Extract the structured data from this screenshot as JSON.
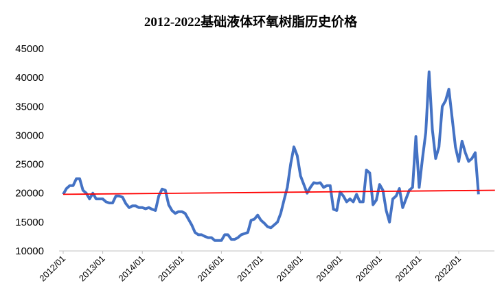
{
  "chart_data": {
    "type": "line",
    "title": "2012-2022基础液体环氧树脂历史价格",
    "x": [
      "2012/01",
      "2012/02",
      "2012/03",
      "2012/04",
      "2012/05",
      "2012/06",
      "2012/07",
      "2012/08",
      "2012/09",
      "2012/10",
      "2012/11",
      "2012/12",
      "2013/01",
      "2013/02",
      "2013/03",
      "2013/04",
      "2013/05",
      "2013/06",
      "2013/07",
      "2013/08",
      "2013/09",
      "2013/10",
      "2013/11",
      "2013/12",
      "2014/01",
      "2014/02",
      "2014/03",
      "2014/04",
      "2014/05",
      "2014/06",
      "2014/07",
      "2014/08",
      "2014/09",
      "2014/10",
      "2014/11",
      "2014/12",
      "2015/01",
      "2015/02",
      "2015/03",
      "2015/04",
      "2015/05",
      "2015/06",
      "2015/07",
      "2015/08",
      "2015/09",
      "2015/10",
      "2015/11",
      "2015/12",
      "2016/01",
      "2016/02",
      "2016/03",
      "2016/04",
      "2016/05",
      "2016/06",
      "2016/07",
      "2016/08",
      "2016/09",
      "2016/10",
      "2016/11",
      "2016/12",
      "2017/01",
      "2017/02",
      "2017/03",
      "2017/04",
      "2017/05",
      "2017/06",
      "2017/07",
      "2017/08",
      "2017/09",
      "2017/10",
      "2017/11",
      "2017/12",
      "2018/01",
      "2018/02",
      "2018/03",
      "2018/04",
      "2018/05",
      "2018/06",
      "2018/07",
      "2018/08",
      "2018/09",
      "2018/10",
      "2018/11",
      "2018/12",
      "2019/01",
      "2019/02",
      "2019/03",
      "2019/04",
      "2019/05",
      "2019/06",
      "2019/07",
      "2019/08",
      "2019/09",
      "2019/10",
      "2019/11",
      "2019/12",
      "2020/01",
      "2020/02",
      "2020/03",
      "2020/04",
      "2020/05",
      "2020/06",
      "2020/07",
      "2020/08",
      "2020/09",
      "2020/10",
      "2020/11",
      "2020/12",
      "2021/01",
      "2021/02",
      "2021/03",
      "2021/04",
      "2021/05",
      "2021/06",
      "2021/07",
      "2021/08",
      "2021/09",
      "2021/10",
      "2021/11",
      "2021/12",
      "2022/01",
      "2022/02",
      "2022/03",
      "2022/04",
      "2022/05",
      "2022/06",
      "2022/07"
    ],
    "series": [
      {
        "color": "#4472c4",
        "values": [
          19800,
          20800,
          21300,
          21300,
          22500,
          22500,
          20500,
          20000,
          19000,
          20000,
          19000,
          19000,
          19000,
          18500,
          18300,
          18300,
          19500,
          19500,
          19300,
          18200,
          17500,
          17800,
          17800,
          17500,
          17500,
          17300,
          17500,
          17200,
          17000,
          19500,
          20700,
          20500,
          18000,
          17000,
          16500,
          16800,
          16800,
          16500,
          15500,
          14500,
          13200,
          12800,
          12800,
          12500,
          12300,
          12300,
          11800,
          11800,
          11800,
          12800,
          12800,
          12000,
          12000,
          12300,
          12800,
          13000,
          13200,
          15300,
          15500,
          16200,
          15300,
          14800,
          14200,
          14000,
          14500,
          15000,
          16500,
          18800,
          21000,
          25000,
          28000,
          26500,
          23000,
          21500,
          20000,
          21000,
          21800,
          21700,
          21800,
          21000,
          21300,
          21300,
          17200,
          17000,
          20200,
          19500,
          18500,
          19000,
          18500,
          19800,
          18500,
          18500,
          24000,
          23500,
          18000,
          18800,
          21500,
          20500,
          17000,
          15000,
          19000,
          19500,
          20800,
          17500,
          19000,
          20500,
          21000,
          29800,
          21000,
          26000,
          30500,
          41000,
          31000,
          26000,
          28000,
          35000,
          36000,
          38000,
          33000,
          28000,
          25500,
          29000,
          27000,
          25500,
          26000,
          27000,
          19800
        ]
      },
      {
        "color": "#ff0000",
        "x": [
          "2012/01",
          "2022/12"
        ],
        "values": [
          19800,
          20500
        ]
      }
    ],
    "ylim": [
      10000,
      45000
    ],
    "yticks": [
      10000,
      15000,
      20000,
      25000,
      30000,
      35000,
      40000,
      45000
    ],
    "xticks": [
      "2012/01",
      "2013/01",
      "2014/01",
      "2015/01",
      "2016/01",
      "2017/01",
      "2018/01",
      "2019/01",
      "2020/01",
      "2021/01",
      "2022/01"
    ]
  }
}
